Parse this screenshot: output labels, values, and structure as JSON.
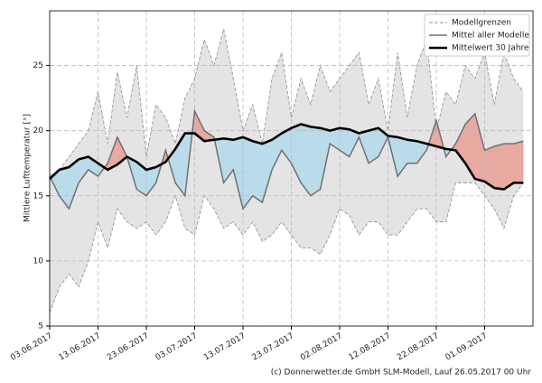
{
  "chart_data": {
    "type": "line",
    "ylabel": "Mittlere Lufttemperatur [°]",
    "footer": "(c) Donnerwetter.de GmbH SLM-Modell, Lauf 26.05.2017 00 Uhr",
    "x": [
      "03.06.2017",
      "05.06.2017",
      "07.06.2017",
      "09.06.2017",
      "11.06.2017",
      "13.06.2017",
      "15.06.2017",
      "17.06.2017",
      "19.06.2017",
      "21.06.2017",
      "23.06.2017",
      "25.06.2017",
      "27.06.2017",
      "29.06.2017",
      "01.07.2017",
      "03.07.2017",
      "05.07.2017",
      "07.07.2017",
      "09.07.2017",
      "11.07.2017",
      "13.07.2017",
      "15.07.2017",
      "17.07.2017",
      "19.07.2017",
      "21.07.2017",
      "23.07.2017",
      "25.07.2017",
      "27.07.2017",
      "29.07.2017",
      "31.07.2017",
      "02.08.2017",
      "04.08.2017",
      "06.08.2017",
      "08.08.2017",
      "10.08.2017",
      "12.08.2017",
      "14.08.2017",
      "16.08.2017",
      "18.08.2017",
      "20.08.2017",
      "22.08.2017",
      "24.08.2017",
      "26.08.2017",
      "28.08.2017",
      "30.08.2017",
      "01.09.2017",
      "03.09.2017",
      "05.09.2017",
      "07.09.2017",
      "09.09.2017"
    ],
    "xlim": [
      "03.06.2017",
      "11.09.2017"
    ],
    "xticks": [
      "03.06.2017",
      "13.06.2017",
      "23.06.2017",
      "03.07.2017",
      "13.07.2017",
      "23.07.2017",
      "02.08.2017",
      "12.08.2017",
      "22.08.2017",
      "01.09.2017"
    ],
    "ylim": [
      5,
      29.2
    ],
    "yticks": [
      5,
      10,
      15,
      20,
      25
    ],
    "grid": true,
    "legend": "upper right",
    "above_color": "#e8a9a0",
    "below_color": "#b9dbea",
    "series": [
      {
        "name": "Modellgrenzen",
        "color": "#999999",
        "dashed": true,
        "values": [
          16.5,
          17,
          18,
          19,
          20,
          23,
          19,
          24.5,
          21,
          25,
          18,
          22,
          21,
          19,
          22.5,
          24,
          27,
          25,
          27.8,
          24,
          20,
          22,
          19,
          24,
          26,
          21,
          24,
          22,
          25,
          23,
          24,
          25,
          26,
          22,
          24,
          20,
          26,
          21,
          25,
          27,
          20,
          23,
          22,
          25,
          24,
          26,
          22,
          26,
          24,
          23
        ],
        "lower": [
          6,
          8,
          9,
          8,
          10,
          13,
          11,
          14,
          13,
          12.5,
          13,
          12,
          13,
          15,
          12.5,
          12,
          15,
          14,
          12.5,
          13,
          12,
          13,
          11.5,
          12,
          13,
          12,
          11,
          11,
          10.5,
          12,
          14,
          13.5,
          12,
          13,
          13,
          12,
          12,
          13,
          14,
          14,
          13,
          13,
          16,
          16,
          16,
          15,
          14,
          12.5,
          15,
          16
        ]
      },
      {
        "name": "Mittel aller Modelle",
        "color": "#707070",
        "values": [
          16.5,
          15,
          14,
          16,
          17,
          16.5,
          17.5,
          19.5,
          18,
          15.5,
          15,
          16,
          18.5,
          16,
          15,
          21.5,
          20,
          19.5,
          16,
          17,
          14,
          15,
          14.5,
          17,
          18.5,
          17.5,
          16,
          15,
          15.5,
          19,
          18.5,
          18,
          19.5,
          17.5,
          18,
          19.5,
          16.5,
          17.5,
          17.5,
          18.5,
          20.8,
          18,
          19,
          20.5,
          21.3,
          18.5,
          18.8,
          19,
          19,
          19.2
        ]
      },
      {
        "name": "Mittelwert 30 Jahre",
        "color": "#000000",
        "values": [
          16.3,
          17,
          17.2,
          17.8,
          18,
          17.5,
          17,
          17.4,
          18,
          17.6,
          17,
          17.2,
          17.6,
          18.6,
          19.8,
          19.8,
          19.2,
          19.3,
          19.4,
          19.3,
          19.5,
          19.2,
          19,
          19.3,
          19.8,
          20.2,
          20.5,
          20.3,
          20.2,
          20,
          20.2,
          20.1,
          19.8,
          20,
          20.2,
          19.6,
          19.5,
          19.3,
          19.2,
          19,
          18.8,
          18.6,
          18.5,
          17.5,
          16.3,
          16.1,
          15.6,
          15.5,
          16,
          16
        ]
      }
    ]
  }
}
